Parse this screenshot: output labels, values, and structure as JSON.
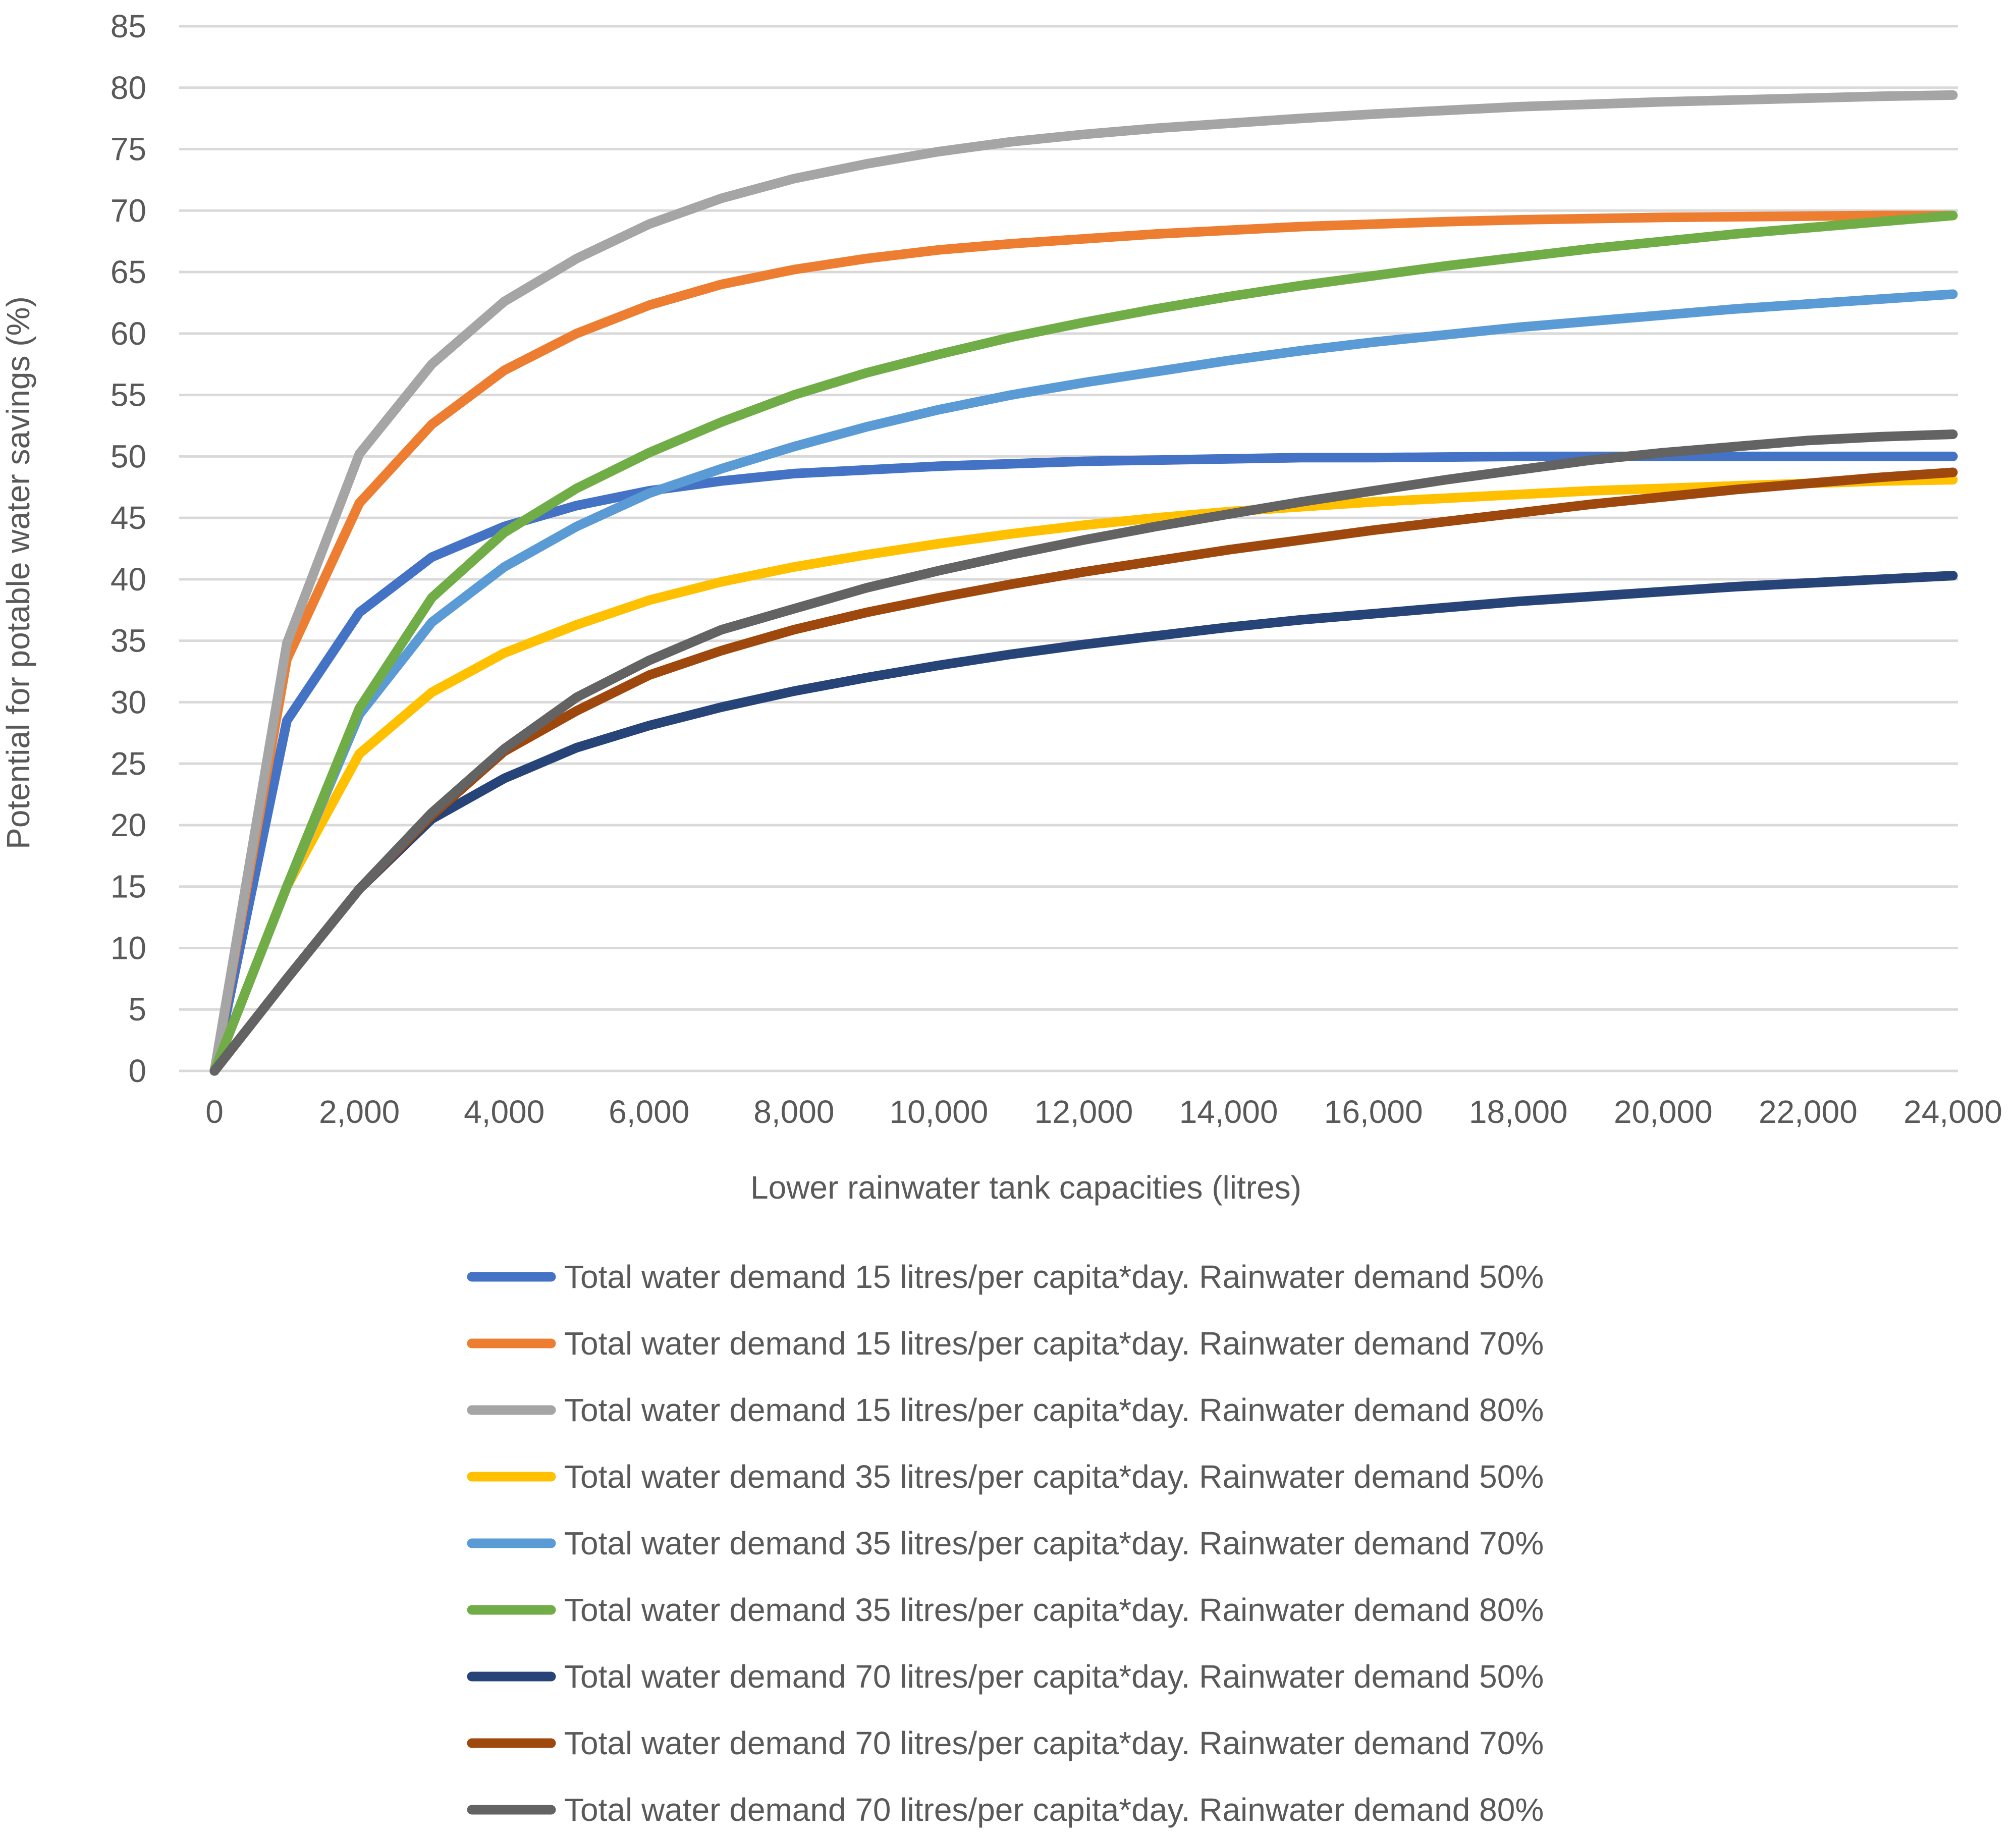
{
  "chart_data": {
    "type": "line",
    "xlabel": "Lower rainwater tank capacities (litres)",
    "ylabel": "Potential for potable water savings (%)",
    "xlim": [
      0,
      24000
    ],
    "ylim": [
      0,
      85
    ],
    "grid": "horizontal",
    "legend_position": "bottom",
    "x_ticks": [
      0,
      2000,
      4000,
      6000,
      8000,
      10000,
      12000,
      14000,
      16000,
      18000,
      20000,
      22000,
      24000
    ],
    "x_tick_labels": [
      "0",
      "2,000",
      "4,000",
      "6,000",
      "8,000",
      "10,000",
      "12,000",
      "14,000",
      "16,000",
      "18,000",
      "20,000",
      "22,000",
      "24,000"
    ],
    "y_ticks": [
      0,
      5,
      10,
      15,
      20,
      25,
      30,
      35,
      40,
      45,
      50,
      55,
      60,
      65,
      70,
      75,
      80,
      85
    ],
    "y_tick_labels": [
      "0",
      "5",
      "10",
      "15",
      "20",
      "25",
      "30",
      "35",
      "40",
      "45",
      "50",
      "55",
      "60",
      "65",
      "70",
      "75",
      "80",
      "85"
    ],
    "x": [
      0,
      1000,
      2000,
      3000,
      4000,
      5000,
      6000,
      7000,
      8000,
      9000,
      10000,
      11000,
      12000,
      13000,
      14000,
      15000,
      16000,
      17000,
      18000,
      19000,
      20000,
      21000,
      22000,
      23000,
      24000
    ],
    "series": [
      {
        "name": "Total water demand 15 litres/per capita*day. Rainwater demand 50%",
        "color": "#4472c4",
        "values": [
          0,
          28.5,
          37.3,
          41.8,
          44.3,
          46.0,
          47.2,
          48.0,
          48.6,
          48.9,
          49.2,
          49.4,
          49.6,
          49.7,
          49.8,
          49.9,
          49.9,
          49.95,
          50.0,
          50.0,
          50.0,
          50.0,
          50.0,
          50.0,
          50.0
        ]
      },
      {
        "name": "Total water demand 15 litres/per capita*day. Rainwater demand 70%",
        "color": "#ed7d31",
        "values": [
          0,
          33.5,
          46.2,
          52.6,
          57.0,
          60.0,
          62.3,
          64.0,
          65.2,
          66.1,
          66.8,
          67.3,
          67.7,
          68.1,
          68.4,
          68.7,
          68.9,
          69.1,
          69.25,
          69.35,
          69.45,
          69.5,
          69.55,
          69.6,
          69.6
        ]
      },
      {
        "name": "Total water demand 15 litres/per capita*day. Rainwater demand 80%",
        "color": "#a5a5a5",
        "values": [
          0,
          34.8,
          50.2,
          57.5,
          62.6,
          66.1,
          68.9,
          71.0,
          72.6,
          73.8,
          74.8,
          75.6,
          76.2,
          76.7,
          77.1,
          77.5,
          77.85,
          78.15,
          78.45,
          78.65,
          78.85,
          79.0,
          79.15,
          79.3,
          79.4
        ]
      },
      {
        "name": "Total water demand 35 litres/per capita*day. Rainwater demand 50%",
        "color": "#ffc000",
        "values": [
          0,
          15.0,
          25.8,
          30.8,
          34.0,
          36.3,
          38.3,
          39.8,
          41.0,
          42.0,
          42.9,
          43.7,
          44.4,
          45.0,
          45.5,
          45.9,
          46.3,
          46.6,
          46.9,
          47.2,
          47.4,
          47.6,
          47.8,
          48.0,
          48.1
        ]
      },
      {
        "name": "Total water demand 35 litres/per capita*day. Rainwater demand 70%",
        "color": "#5b9bd5",
        "values": [
          0,
          15.0,
          29.0,
          36.5,
          41.0,
          44.3,
          47.0,
          49.0,
          50.8,
          52.4,
          53.8,
          55.0,
          56.0,
          56.9,
          57.8,
          58.6,
          59.3,
          59.9,
          60.5,
          61.0,
          61.5,
          62.0,
          62.4,
          62.8,
          63.2
        ]
      },
      {
        "name": "Total water demand 35 litres/per capita*day. Rainwater demand 80%",
        "color": "#70ad47",
        "values": [
          0,
          15.0,
          29.5,
          38.5,
          43.8,
          47.4,
          50.3,
          52.8,
          55.0,
          56.8,
          58.3,
          59.7,
          60.9,
          62.0,
          63.0,
          63.9,
          64.7,
          65.5,
          66.2,
          66.9,
          67.5,
          68.1,
          68.6,
          69.1,
          69.6
        ]
      },
      {
        "name": "Total water demand 70 litres/per capita*day. Rainwater demand 50%",
        "color": "#264478",
        "values": [
          0,
          7.5,
          14.8,
          20.5,
          23.8,
          26.3,
          28.1,
          29.6,
          30.9,
          32.0,
          33.0,
          33.9,
          34.7,
          35.4,
          36.1,
          36.7,
          37.2,
          37.7,
          38.2,
          38.6,
          39.0,
          39.4,
          39.7,
          40.0,
          40.3
        ]
      },
      {
        "name": "Total water demand 70 litres/per capita*day. Rainwater demand 70%",
        "color": "#9e480e",
        "values": [
          0,
          7.5,
          14.8,
          20.8,
          26.0,
          29.3,
          32.2,
          34.2,
          35.9,
          37.3,
          38.5,
          39.6,
          40.6,
          41.5,
          42.4,
          43.2,
          44.0,
          44.7,
          45.4,
          46.1,
          46.7,
          47.3,
          47.8,
          48.3,
          48.7
        ]
      },
      {
        "name": "Total water demand 70 litres/per capita*day. Rainwater demand 80%",
        "color": "#636363",
        "values": [
          0,
          7.5,
          14.8,
          21.0,
          26.2,
          30.4,
          33.4,
          35.9,
          37.6,
          39.3,
          40.7,
          42.0,
          43.2,
          44.3,
          45.3,
          46.3,
          47.2,
          48.1,
          48.9,
          49.7,
          50.3,
          50.8,
          51.3,
          51.6,
          51.8
        ]
      }
    ]
  }
}
